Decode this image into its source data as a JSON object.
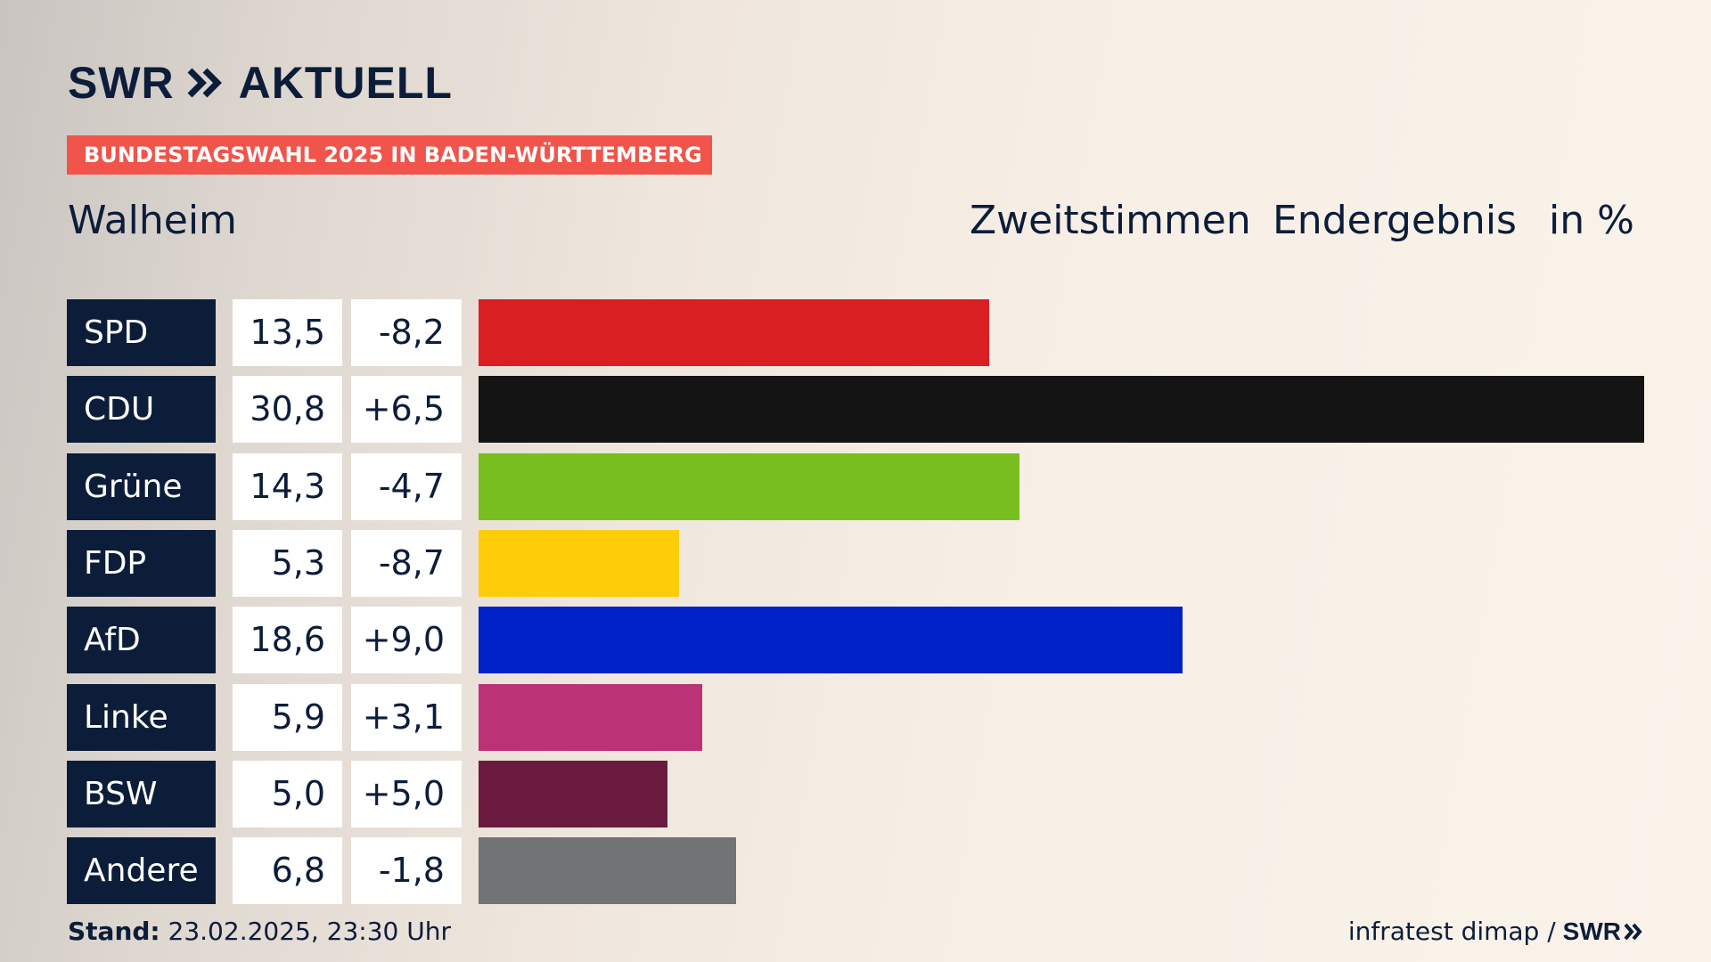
{
  "brand": {
    "swr": "SWR",
    "aktuell": "AKTUELL",
    "chevron_icon": "double-chevron-right-icon"
  },
  "banner": {
    "label": "BUNDESTAGSWAHL 2025 IN BADEN-WÜRTTEMBERG",
    "color": "#f0544a"
  },
  "place": "Walheim",
  "header": {
    "vote_type": "Zweitstimmen",
    "result_type": "Endergebnis",
    "unit": "in %"
  },
  "chart_data": {
    "type": "bar",
    "orientation": "horizontal",
    "categories": [
      "SPD",
      "CDU",
      "Grüne",
      "FDP",
      "AfD",
      "Linke",
      "BSW",
      "Andere"
    ],
    "values": [
      13.5,
      30.8,
      14.3,
      5.3,
      18.6,
      5.9,
      5.0,
      6.8
    ],
    "value_labels": [
      "13,5",
      "30,8",
      "14,3",
      "5,3",
      "18,6",
      "5,9",
      "5,0",
      "6,8"
    ],
    "changes": [
      -8.2,
      6.5,
      -4.7,
      -8.7,
      9.0,
      3.1,
      5.0,
      -1.8
    ],
    "change_labels": [
      "-8,2",
      "+6,5",
      "-4,7",
      "-8,7",
      "+9,0",
      "+3,1",
      "+5,0",
      "-1,8"
    ],
    "colors": [
      "#d91f22",
      "#141414",
      "#78be1e",
      "#ffcc08",
      "#0021c6",
      "#bc3276",
      "#691a3e",
      "#727374"
    ],
    "xlim": [
      0,
      30.8
    ],
    "grid": false,
    "legend": "none"
  },
  "footer": {
    "stand_label": "Stand:",
    "stand_value": "23.02.2025, 23:30 Uhr",
    "source": "infratest dimap /",
    "source_brand": "SWR"
  }
}
